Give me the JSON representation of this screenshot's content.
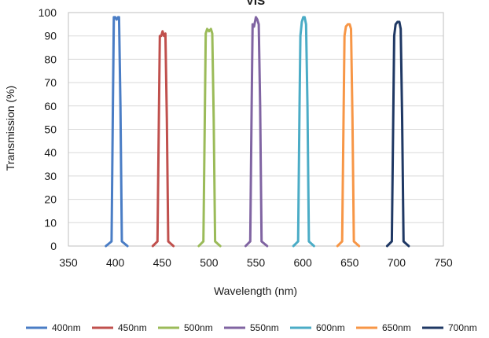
{
  "chart_data": {
    "type": "line",
    "title": "VIS",
    "xlabel": "Wavelength (nm)",
    "ylabel": "Transmission (%)",
    "xlim": [
      350,
      750
    ],
    "ylim": [
      0,
      100
    ],
    "xticks": [
      350,
      400,
      450,
      500,
      550,
      600,
      650,
      700,
      750
    ],
    "yticks": [
      0,
      10,
      20,
      30,
      40,
      50,
      60,
      70,
      80,
      90,
      100
    ],
    "grid": "horizontal",
    "legend_position": "bottom",
    "series": [
      {
        "name": "400nm",
        "color": "#4a7dc5",
        "x": [
          390,
          396,
          397.5,
          398.5,
          400,
          401.5,
          403,
          404,
          405.5,
          407,
          413
        ],
        "y": [
          0,
          2,
          60,
          98,
          98,
          97,
          98,
          98,
          60,
          2,
          0
        ]
      },
      {
        "name": "450nm",
        "color": "#c0504d",
        "x": [
          440,
          445,
          446.5,
          447.5,
          449,
          450.5,
          452,
          453.5,
          455,
          456.5,
          462
        ],
        "y": [
          0,
          2,
          55,
          90,
          90,
          92,
          90,
          91,
          55,
          2,
          0
        ]
      },
      {
        "name": "500nm",
        "color": "#9bbb59",
        "x": [
          489,
          494,
          495.5,
          496.5,
          498,
          500,
          502,
          503.5,
          505,
          506.5,
          512
        ],
        "y": [
          0,
          2,
          55,
          91,
          93,
          92,
          93,
          91,
          55,
          2,
          0
        ]
      },
      {
        "name": "550nm",
        "color": "#8064a2",
        "x": [
          539,
          544,
          545.5,
          546.5,
          548,
          550,
          551.5,
          553,
          554.5,
          556,
          562
        ],
        "y": [
          0,
          2,
          60,
          95,
          94,
          98,
          97,
          95,
          60,
          2,
          0
        ]
      },
      {
        "name": "600nm",
        "color": "#4bacc6",
        "x": [
          590,
          595,
          596.5,
          597.5,
          599,
          600.5,
          602,
          603.5,
          605,
          606.5,
          612
        ],
        "y": [
          0,
          2,
          60,
          90,
          96,
          98,
          98,
          95,
          60,
          2,
          0
        ]
      },
      {
        "name": "650nm",
        "color": "#f79646",
        "x": [
          637,
          642,
          643.5,
          644.5,
          646,
          648,
          650,
          651.5,
          653,
          654.5,
          660
        ],
        "y": [
          0,
          2,
          55,
          90,
          94,
          95,
          95,
          93,
          55,
          2,
          0
        ]
      },
      {
        "name": "700nm",
        "color": "#1f3864",
        "x": [
          690,
          695,
          696.5,
          697.5,
          699,
          701,
          703,
          704.5,
          706,
          707.5,
          713
        ],
        "y": [
          0,
          2,
          55,
          90,
          95,
          96,
          96,
          93,
          55,
          2,
          0
        ]
      }
    ]
  }
}
